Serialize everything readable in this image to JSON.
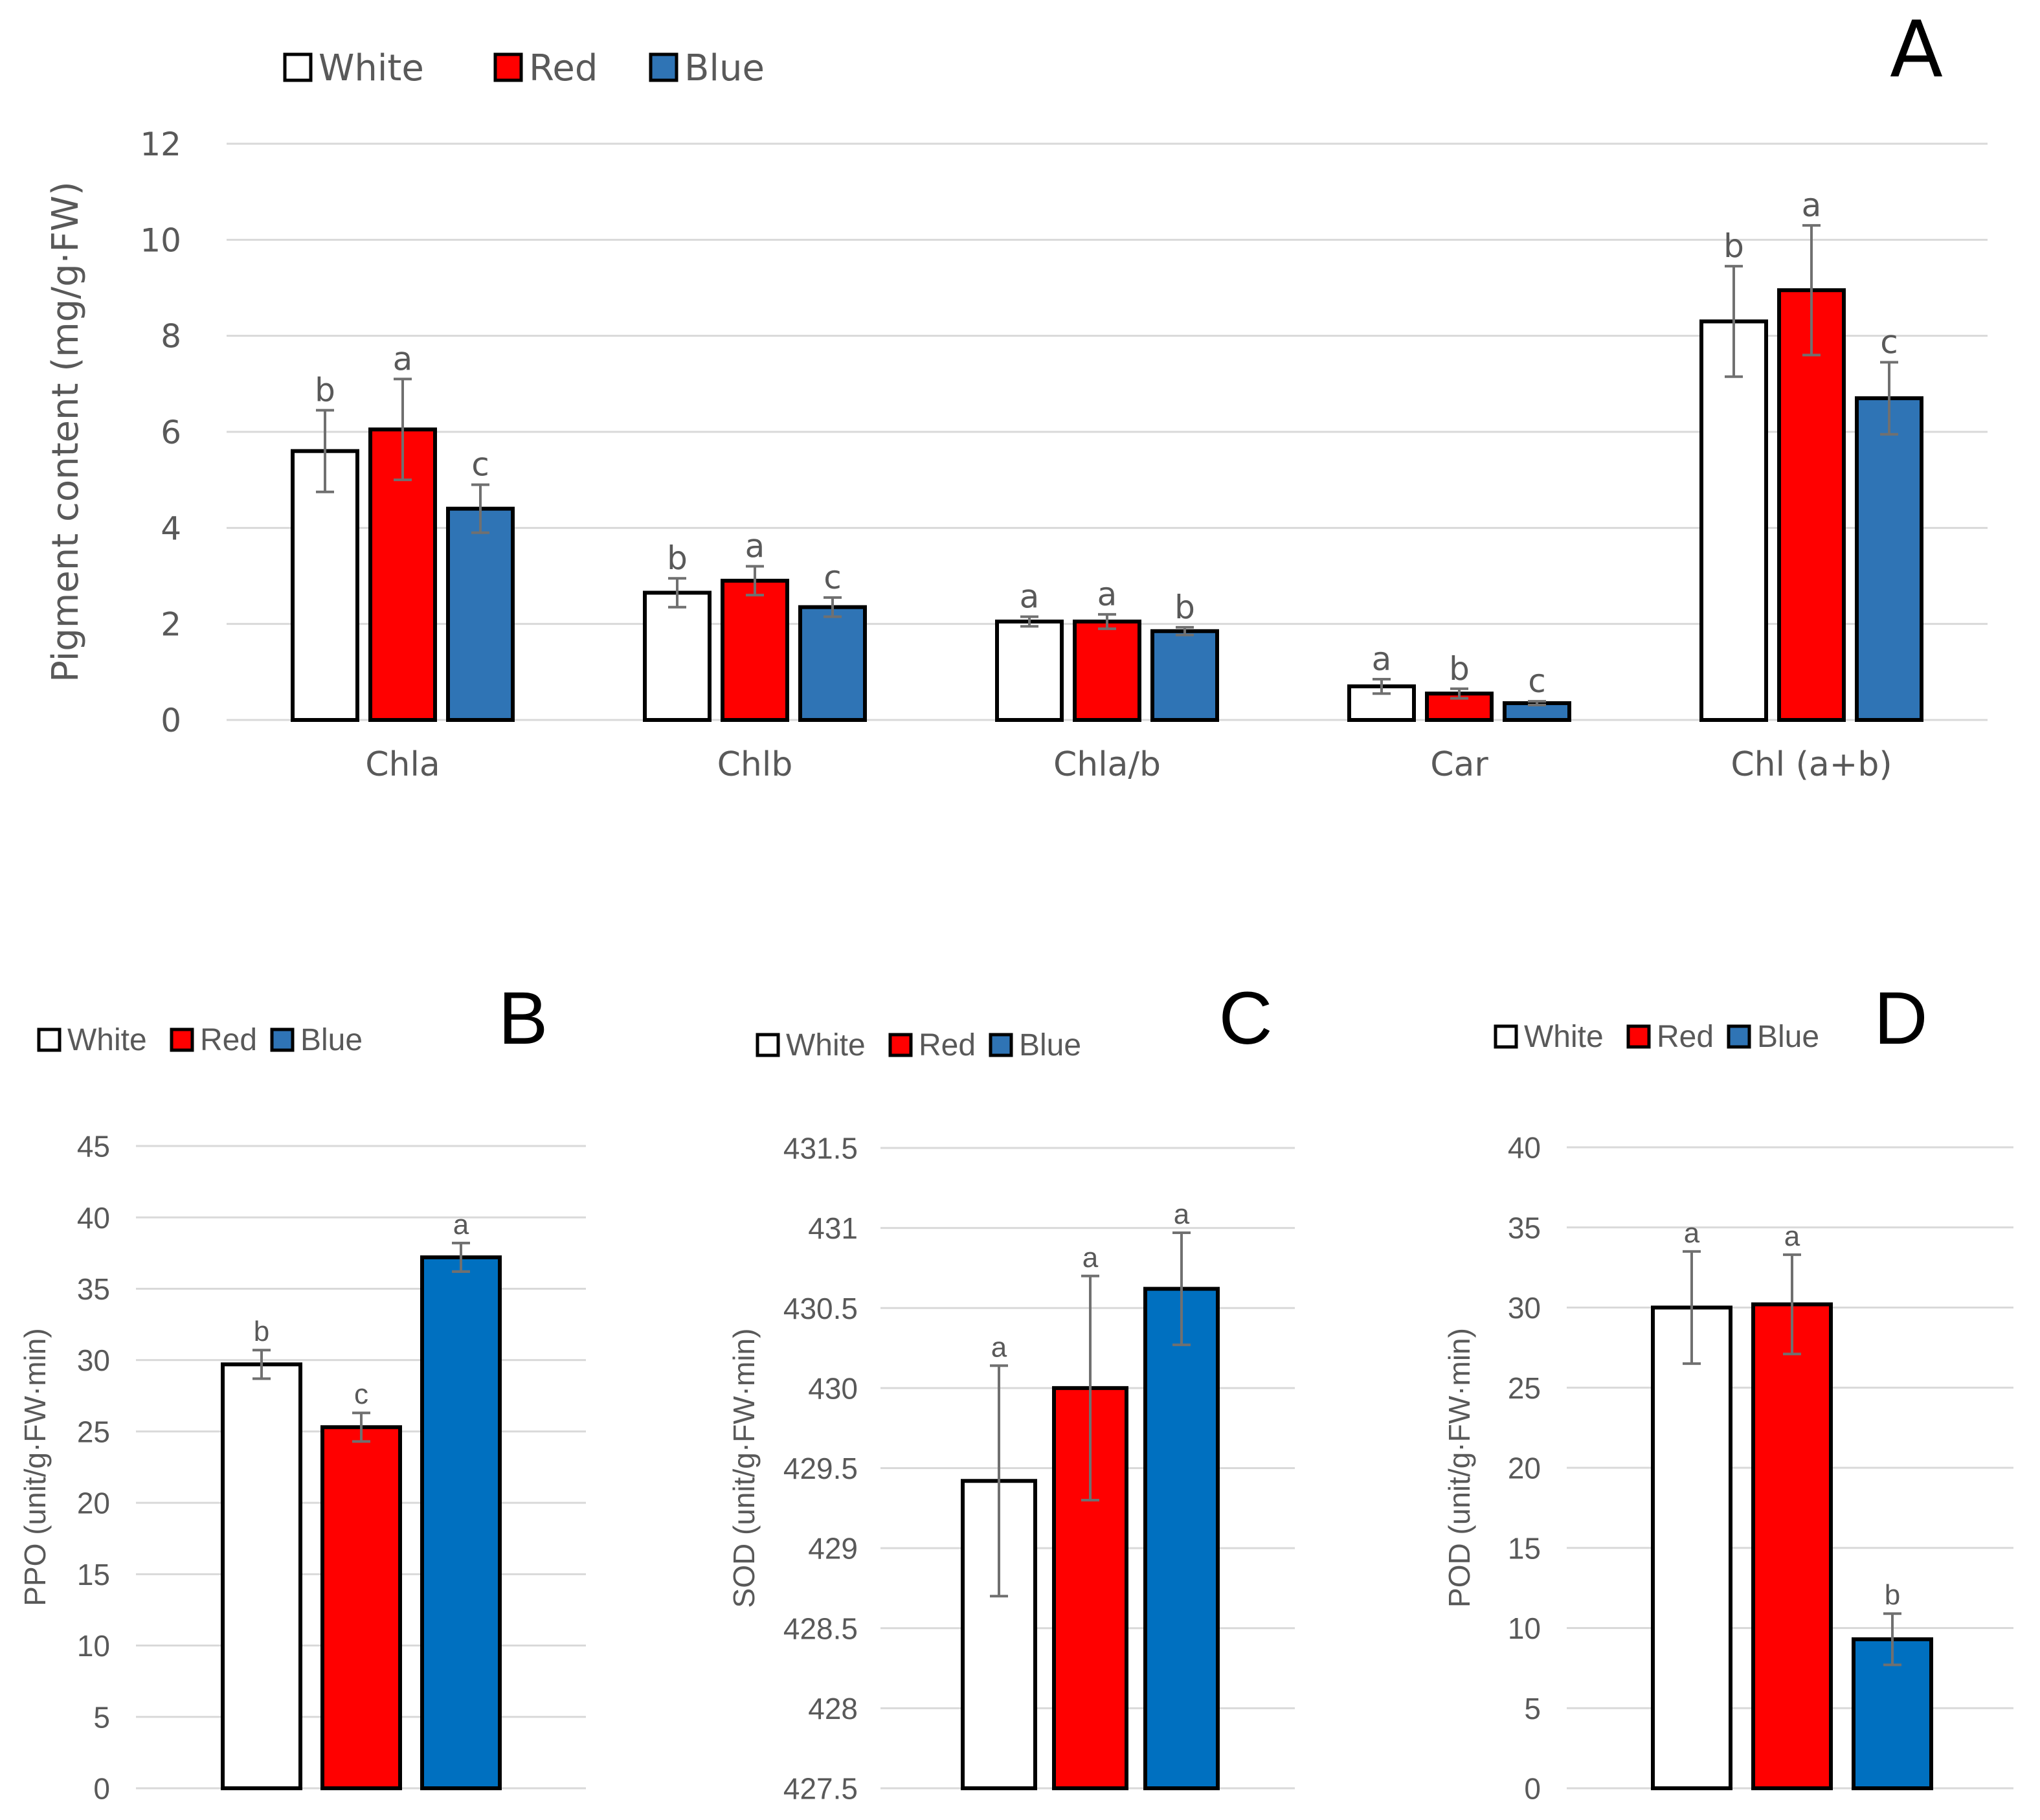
{
  "colors": {
    "White": "#ffffff",
    "Red": "#ff0000",
    "Blue": "#2f74b5",
    "BlueDeep": "#0070c0",
    "grid": "#d9d9d9",
    "axisText": "#595959",
    "errorBar": "#707070"
  },
  "chart_data": [
    {
      "panel": "A",
      "type": "bar",
      "title": "",
      "panel_label": "A",
      "ylabel": "Pigment content (mg/g·FW)",
      "xlabel": "",
      "ylim": [
        0,
        12
      ],
      "yticks": [
        "0",
        "2",
        "4",
        "6",
        "8",
        "10",
        "12"
      ],
      "categories": [
        "Chla",
        "Chlb",
        "Chla/b",
        "Car",
        "Chl (a+b)"
      ],
      "legend": [
        "White",
        "Red",
        "Blue"
      ],
      "legend_position": "top-left",
      "grid": true,
      "series": [
        {
          "name": "White",
          "color_key": "White",
          "values": [
            5.6,
            2.65,
            2.05,
            0.7,
            8.3
          ],
          "errors": [
            0.85,
            0.3,
            0.1,
            0.15,
            1.15
          ],
          "letters": [
            "b",
            "b",
            "a",
            "a",
            "b"
          ]
        },
        {
          "name": "Red",
          "color_key": "Red",
          "values": [
            6.05,
            2.9,
            2.05,
            0.55,
            8.95
          ],
          "errors": [
            1.05,
            0.3,
            0.15,
            0.1,
            1.35
          ],
          "letters": [
            "a",
            "a",
            "a",
            "b",
            "a"
          ]
        },
        {
          "name": "Blue",
          "color_key": "Blue",
          "values": [
            4.4,
            2.35,
            1.85,
            0.35,
            6.7
          ],
          "errors": [
            0.5,
            0.2,
            0.08,
            0.04,
            0.75
          ],
          "letters": [
            "c",
            "c",
            "b",
            "c",
            "c"
          ]
        }
      ]
    },
    {
      "panel": "B",
      "type": "bar",
      "title": "",
      "panel_label": "B",
      "ylabel": "PPO (unit/g·FW·min)",
      "xlabel": "",
      "ylim": [
        0,
        45
      ],
      "yticks": [
        "0",
        "5",
        "10",
        "15",
        "20",
        "25",
        "30",
        "35",
        "40",
        "45"
      ],
      "categories": [
        "White",
        "Red",
        "Blue"
      ],
      "legend": [
        "White",
        "Red",
        "Blue"
      ],
      "legend_position": "top-left",
      "grid": true,
      "series": [
        {
          "name": "PPO",
          "values": [
            29.7,
            25.3,
            37.2
          ],
          "errors": [
            1.0,
            1.0,
            1.0
          ],
          "letters": [
            "b",
            "c",
            "a"
          ],
          "color_keys": [
            "White",
            "Red",
            "BlueDeep"
          ]
        }
      ]
    },
    {
      "panel": "C",
      "type": "bar",
      "title": "",
      "panel_label": "C",
      "ylabel": "SOD (unit/g·FW·min)",
      "xlabel": "",
      "ylim": [
        427.5,
        431.5
      ],
      "yticks": [
        "427.5",
        "428",
        "428.5",
        "429",
        "429.5",
        "430",
        "430.5",
        "431",
        "431.5"
      ],
      "categories": [
        "White",
        "Red",
        "Blue"
      ],
      "legend": [
        "White",
        "Red",
        "Blue"
      ],
      "legend_position": "top-left",
      "grid": true,
      "series": [
        {
          "name": "SOD",
          "values": [
            429.42,
            430.0,
            430.62
          ],
          "errors": [
            0.72,
            0.7,
            0.35
          ],
          "letters": [
            "a",
            "a",
            "a"
          ],
          "color_keys": [
            "White",
            "Red",
            "BlueDeep"
          ]
        }
      ]
    },
    {
      "panel": "D",
      "type": "bar",
      "title": "",
      "panel_label": "D",
      "ylabel": "POD (unit/g·FW·min)",
      "xlabel": "",
      "ylim": [
        0,
        40
      ],
      "yticks": [
        "0",
        "5",
        "10",
        "15",
        "20",
        "25",
        "30",
        "35",
        "40"
      ],
      "categories": [
        "White",
        "Red",
        "Blue"
      ],
      "legend": [
        "White",
        "Red",
        "Blue"
      ],
      "legend_position": "top-left",
      "grid": true,
      "series": [
        {
          "name": "POD",
          "values": [
            30.0,
            30.2,
            9.3
          ],
          "errors": [
            3.5,
            3.1,
            1.6
          ],
          "letters": [
            "a",
            "a",
            "b"
          ],
          "color_keys": [
            "White",
            "Red",
            "BlueDeep"
          ]
        }
      ]
    }
  ]
}
